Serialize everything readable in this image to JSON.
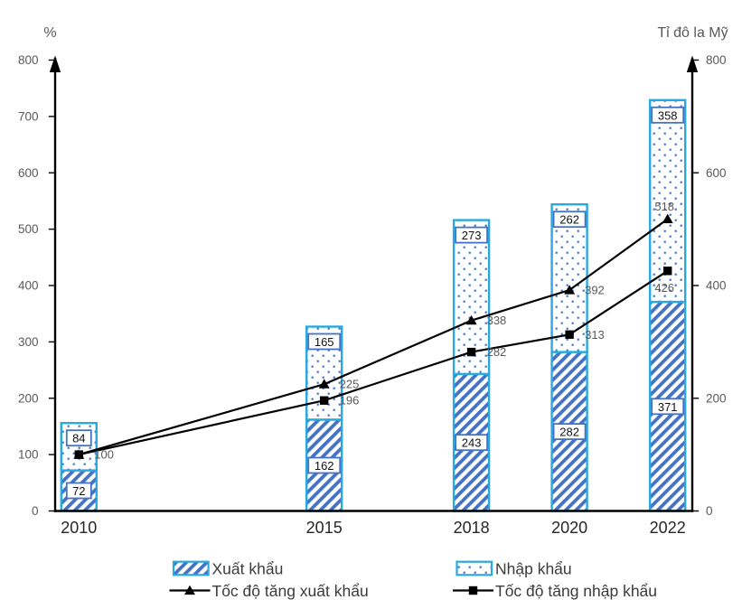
{
  "chart_data": {
    "type": "combo-stacked-bar-line",
    "categories": [
      "2010",
      "2015",
      "2018",
      "2020",
      "2022"
    ],
    "category_years": [
      2010,
      2015,
      2018,
      2020,
      2022
    ],
    "left_axis": {
      "title": "%",
      "min": 0,
      "max": 800,
      "step": 100,
      "tick_labels": [
        "0",
        "100",
        "200",
        "300",
        "400",
        "500",
        "600",
        "700",
        "800"
      ]
    },
    "right_axis": {
      "title": "Tỉ đô la Mỹ",
      "min": 0,
      "max": 800,
      "step": 200,
      "tick_labels": [
        "0",
        "200",
        "400",
        "600",
        "800"
      ]
    },
    "bar_series": [
      {
        "name": "Xuất khẩu",
        "key": "xuat-khau",
        "values": [
          72,
          162,
          243,
          282,
          371
        ],
        "labels": [
          "72",
          "162",
          "243",
          "282",
          "371"
        ],
        "pattern": "hatch",
        "label_position": "center"
      },
      {
        "name": "Nhập khẩu",
        "key": "nhap-khau",
        "values": [
          84,
          165,
          273,
          262,
          358
        ],
        "labels": [
          "84",
          "165",
          "273",
          "262",
          "358"
        ],
        "pattern": "dots",
        "label_position": "inside-top"
      }
    ],
    "line_series": [
      {
        "name": "Tốc độ tăng xuất khẩu",
        "key": "toc-do-tang-xuat-khau",
        "values": [
          100,
          225,
          338,
          392,
          518
        ],
        "labels": [
          "",
          "225",
          "338",
          "392",
          "518"
        ],
        "label_side": [
          "right",
          "right",
          "right",
          "right",
          "above"
        ],
        "marker": "triangle"
      },
      {
        "name": "Tốc độ tăng nhập khẩu",
        "key": "toc-do-tang-nhap-khau",
        "values": [
          100,
          196,
          282,
          313,
          426
        ],
        "labels": [
          "100",
          "196",
          "282",
          "313",
          "426"
        ],
        "label_side": [
          "right",
          "right",
          "right",
          "right",
          "below"
        ],
        "marker": "square"
      }
    ],
    "legend": {
      "rows": [
        [
          "Xuất khẩu",
          "Nhập khẩu"
        ],
        [
          "Tốc độ tăng xuất khẩu",
          "Tốc độ tăng nhập khẩu"
        ]
      ]
    },
    "colors": {
      "bar_border": "#29A9E1",
      "pattern_blue": "#4472C4",
      "label_box_border": "#4472C4",
      "label_box_fill": "#ffffff",
      "line_black": "#000000",
      "axis_black": "#000000",
      "tick_label_gray": "#595959",
      "point_label_gray": "#595959",
      "bar_label_text": "#111111",
      "category_text": "#262626",
      "legend_text": "#3b3b3b",
      "background": "#ffffff"
    }
  }
}
